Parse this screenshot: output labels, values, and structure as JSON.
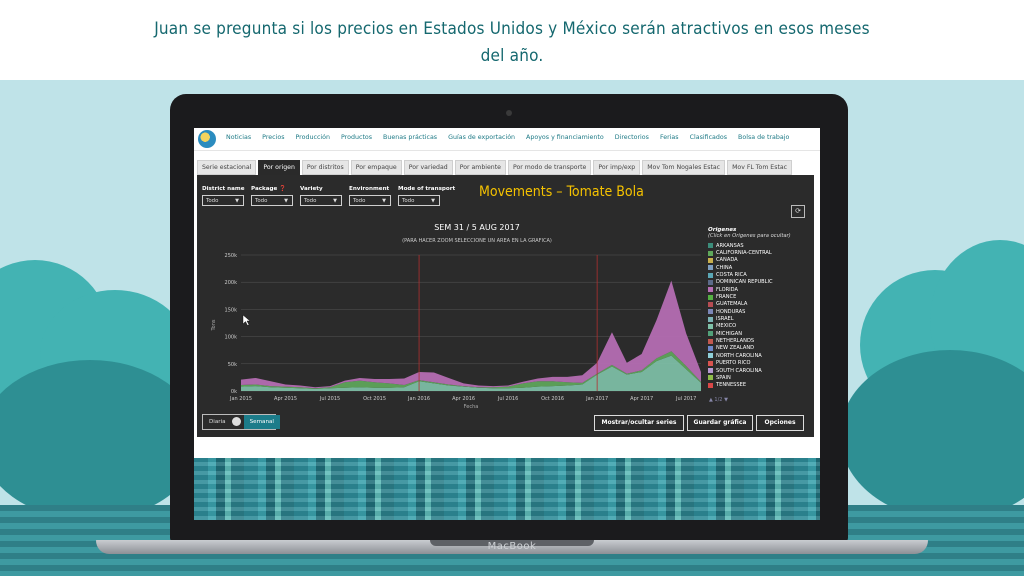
{
  "headline": {
    "line1": "Juan se pregunta si los precios en Estados Unidos y México serán atractivos en esos meses",
    "line2": "del año."
  },
  "laptop": {
    "brand": "MacBook"
  },
  "nav": {
    "items": [
      "Noticias",
      "Precios",
      "Producción",
      "Productos",
      "Buenas prácticas",
      "Guías de exportación",
      "Apoyos y financiamiento",
      "Directorios",
      "Ferias",
      "Clasificados",
      "Bolsa de trabajo"
    ]
  },
  "tabs": [
    "Serie estacional",
    "Por origen",
    "Por distritos",
    "Por empaque",
    "Por variedad",
    "Por ambiente",
    "Por modo de transporte",
    "Por imp/exp",
    "Mov Tom Nogales Estac",
    "Mov FL Tom Estac"
  ],
  "active_tab": "Por origen",
  "filters": [
    {
      "label": "District name",
      "value": "Todo"
    },
    {
      "label": "Package ❓",
      "value": "Todo"
    },
    {
      "label": "Variety",
      "value": "Todo"
    },
    {
      "label": "Environment",
      "value": "Todo"
    },
    {
      "label": "Mode of transport",
      "value": "Todo"
    }
  ],
  "chart_title": "Movements – Tomate Bola",
  "refresh_icon": "refresh-icon",
  "chart_data": {
    "type": "area",
    "title": "SEM 31 / 5 AUG 2017",
    "subtitle": "(PARA HACER ZOOM SELECCIONE UN AREA EN LA GRAFICA)",
    "xlabel": "Fecha",
    "ylabel": "Tons",
    "x_ticks": [
      "Jan 2015",
      "Apr 2015",
      "Jul 2015",
      "Oct 2015",
      "Jan 2016",
      "Apr 2016",
      "Jul 2016",
      "Oct 2016",
      "Jan 2017",
      "Apr 2017",
      "Jul 2017"
    ],
    "y_ticks": [
      "0k",
      "50k",
      "100k",
      "150k",
      "200k",
      "250k"
    ],
    "ylim": [
      0,
      250000
    ],
    "markers": [
      "Jan 2016",
      "Jan 2017"
    ],
    "x_months": [
      0,
      1,
      2,
      3,
      4,
      5,
      6,
      7,
      8,
      9,
      10,
      11,
      12,
      13,
      14,
      15,
      16,
      17,
      18,
      19,
      20,
      21,
      22,
      23,
      24,
      25,
      26,
      27,
      28,
      29,
      30,
      31
    ],
    "series": [
      {
        "name": "MEXICO",
        "color": "#7fc1a8",
        "values": [
          8000,
          9000,
          7000,
          6000,
          5000,
          4000,
          5000,
          6000,
          7000,
          6000,
          6000,
          7000,
          18000,
          14000,
          10000,
          8000,
          6000,
          5000,
          5000,
          6000,
          8000,
          9000,
          10000,
          12000,
          30000,
          45000,
          30000,
          35000,
          55000,
          65000,
          40000,
          15000
        ]
      },
      {
        "name": "CALIFORNIA-CENTRAL",
        "color": "#5fa85b",
        "values": [
          3000,
          3000,
          2000,
          2000,
          2000,
          1000,
          2000,
          10000,
          12000,
          10000,
          8000,
          4000,
          2000,
          2000,
          2000,
          1000,
          1000,
          2000,
          3000,
          8000,
          10000,
          9000,
          6000,
          3000,
          2000,
          3000,
          2000,
          3000,
          5000,
          8000,
          6000,
          2000
        ]
      },
      {
        "name": "FLORIDA",
        "color": "#b86fb6",
        "values": [
          10000,
          12000,
          9000,
          4000,
          3000,
          2000,
          2000,
          3000,
          5000,
          6000,
          8000,
          12000,
          15000,
          18000,
          12000,
          5000,
          3000,
          2000,
          2000,
          3000,
          5000,
          8000,
          10000,
          14000,
          20000,
          60000,
          20000,
          30000,
          70000,
          130000,
          60000,
          18000
        ]
      }
    ]
  },
  "legend": {
    "title": "Origenes",
    "subtitle": "(Click en Origenes para ocultar)",
    "items": [
      {
        "label": "ARKANSAS",
        "color": "#3c8d7b"
      },
      {
        "label": "CALIFORNIA-CENTRAL",
        "color": "#5fa85b"
      },
      {
        "label": "CANADA",
        "color": "#c8b04d"
      },
      {
        "label": "CHINA",
        "color": "#7f9fc0"
      },
      {
        "label": "COSTA RICA",
        "color": "#5ba7b5"
      },
      {
        "label": "DOMINICAN REPUBLIC",
        "color": "#5c6b8a"
      },
      {
        "label": "FLORIDA",
        "color": "#b86fb6"
      },
      {
        "label": "FRANCE",
        "color": "#55b043"
      },
      {
        "label": "GUATEMALA",
        "color": "#b64c53"
      },
      {
        "label": "HONDURAS",
        "color": "#7c86b8"
      },
      {
        "label": "ISRAEL",
        "color": "#7cb5b7"
      },
      {
        "label": "MEXICO",
        "color": "#7fc1a8"
      },
      {
        "label": "MICHIGAN",
        "color": "#52a17a"
      },
      {
        "label": "NETHERLANDS",
        "color": "#c2584f"
      },
      {
        "label": "NEW ZEALAND",
        "color": "#6d87c9"
      },
      {
        "label": "NORTH CAROLINA",
        "color": "#8fd0d8"
      },
      {
        "label": "PUERTO RICO",
        "color": "#d9534f"
      },
      {
        "label": "SOUTH CAROLINA",
        "color": "#b79ad2"
      },
      {
        "label": "SPAIN",
        "color": "#8fbd4a"
      },
      {
        "label": "TENNESSEE",
        "color": "#d94848"
      }
    ],
    "nav": "▲ 1/2 ▼"
  },
  "controls": {
    "daily": "Diaria",
    "weekly": "Semanal",
    "show_hide": "Mostrar/ocultar series",
    "save": "Guardar gráfica",
    "options": "Opciones"
  }
}
